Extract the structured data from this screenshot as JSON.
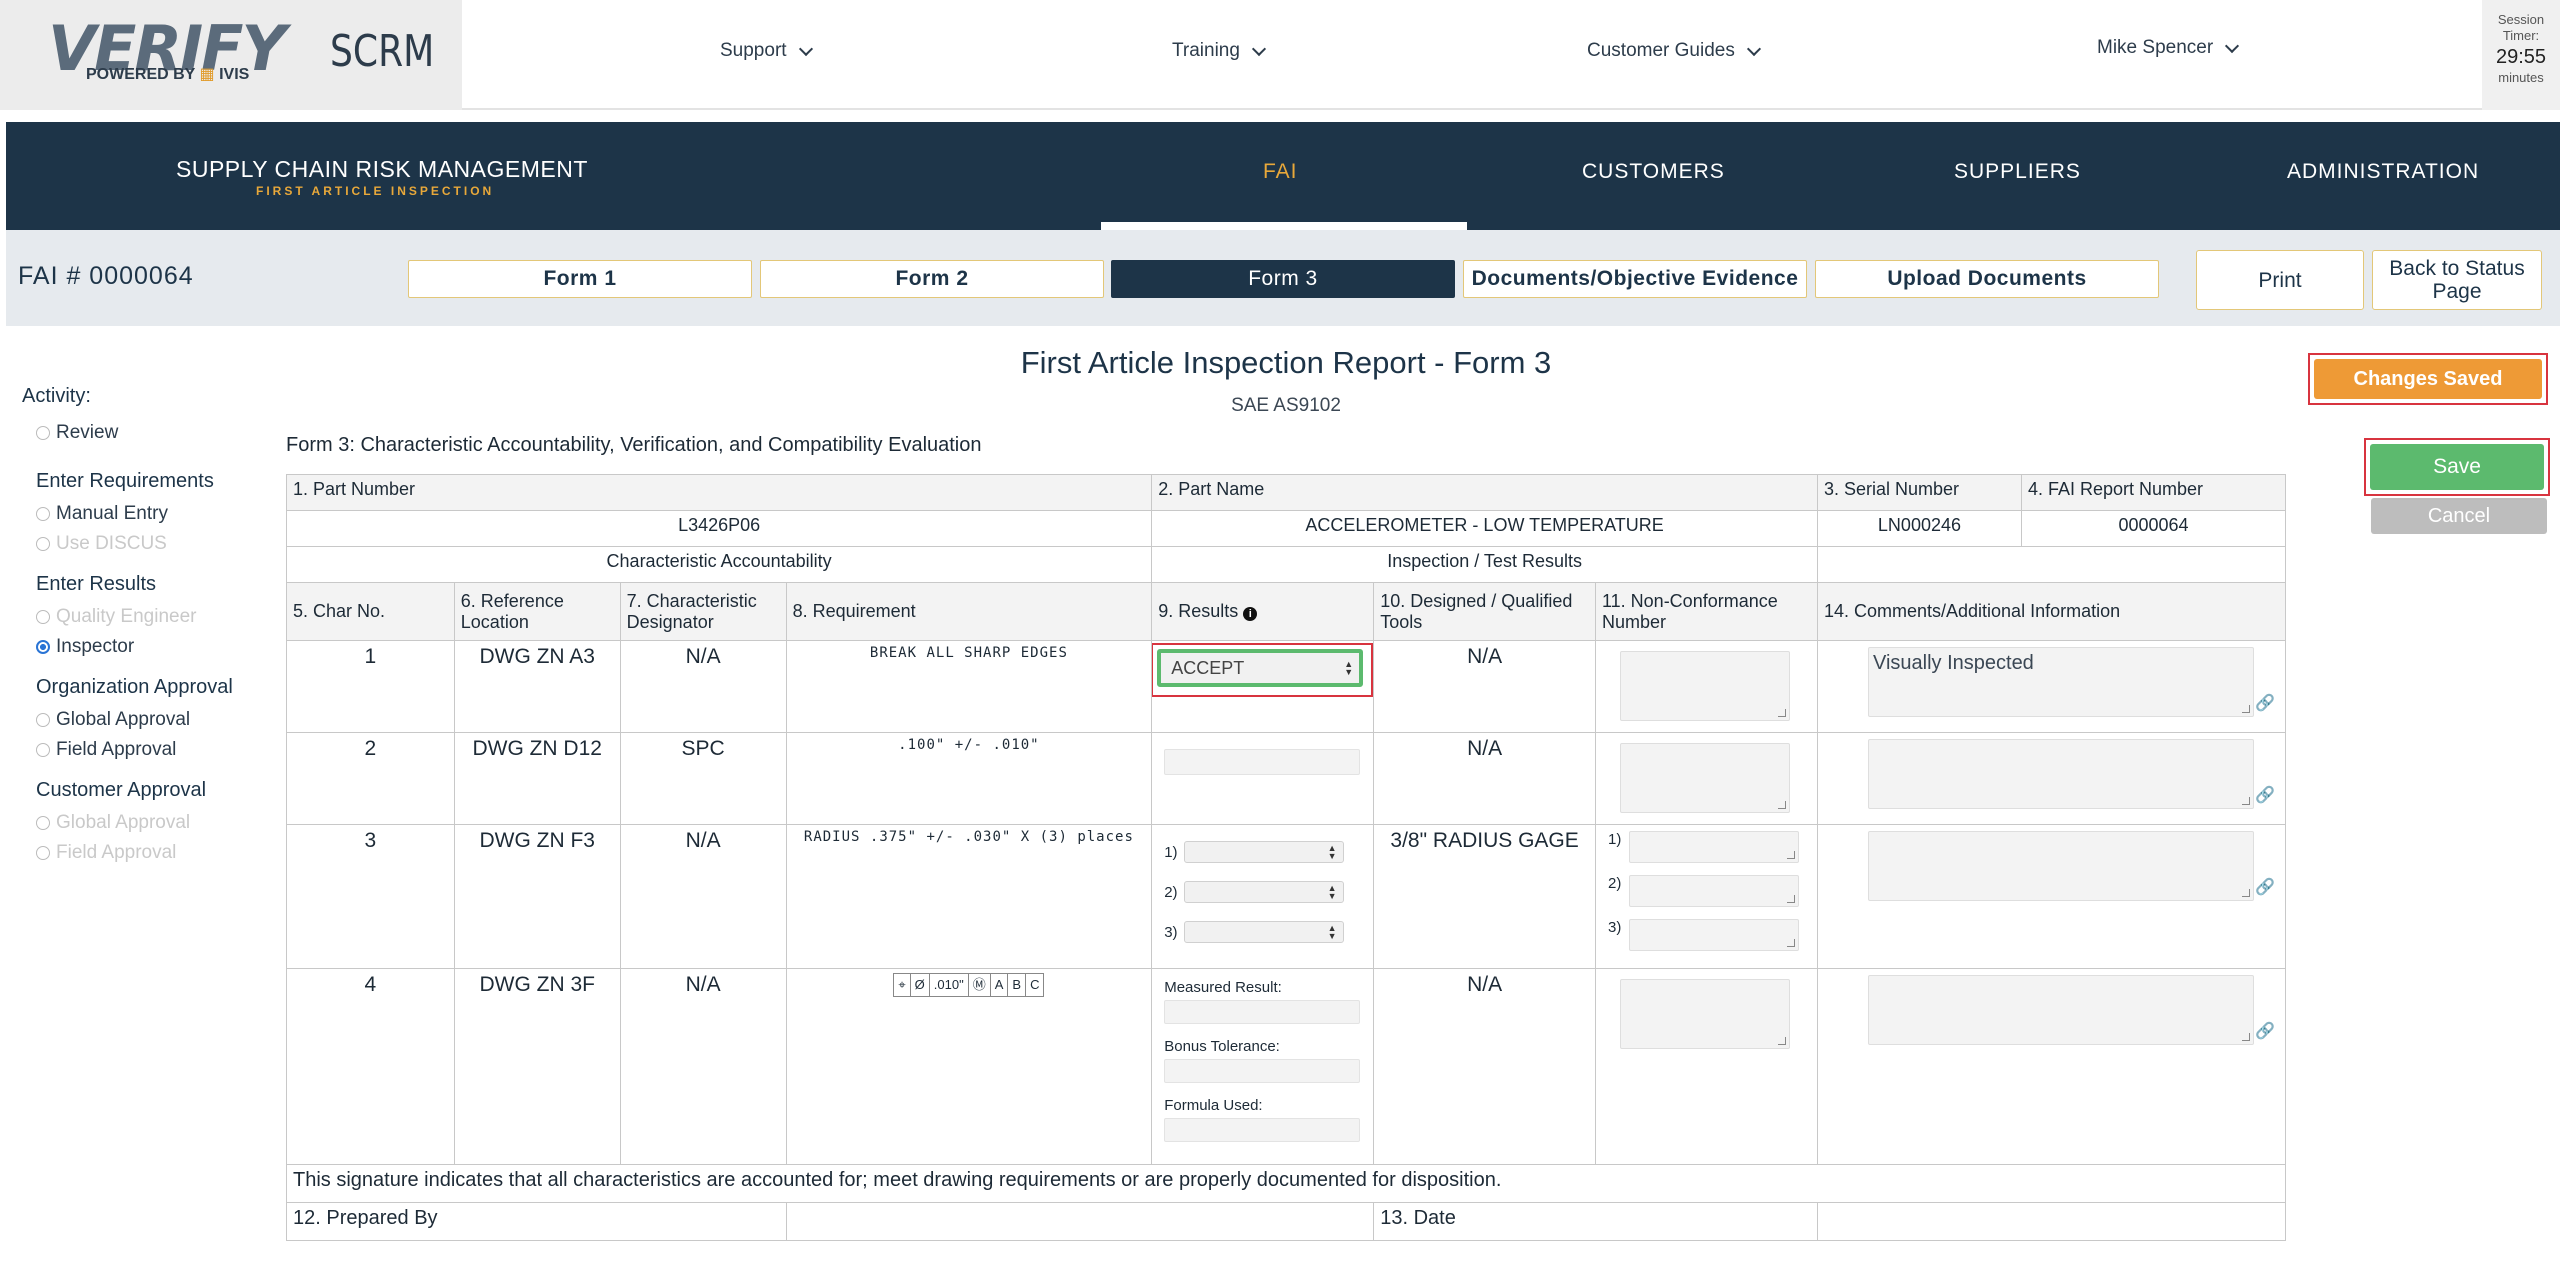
{
  "header": {
    "logo_text": "VERIFY",
    "logo_powered_by": "POWERED BY",
    "logo_brand": "IVIS",
    "app_short": "SCRM",
    "nav": [
      {
        "label": "Support"
      },
      {
        "label": "Training"
      },
      {
        "label": "Customer Guides"
      }
    ],
    "user": "Mike Spencer",
    "timer": {
      "label1": "Session",
      "label2": "Timer:",
      "value": "29:55",
      "unit": "minutes"
    }
  },
  "mainnav": {
    "brand_title": "SUPPLY CHAIN RISK MANAGEMENT",
    "brand_subtitle": "FIRST ARTICLE INSPECTION",
    "tabs": [
      "FAI",
      "CUSTOMERS",
      "SUPPLIERS",
      "ADMINISTRATION"
    ],
    "active_tab": "FAI"
  },
  "subbar": {
    "fai_number": "FAI # 0000064",
    "form_tabs": [
      "Form 1",
      "Form 2",
      "Form 3",
      "Documents/Objective Evidence",
      "Upload Documents"
    ],
    "active_form": "Form 3",
    "print_label": "Print",
    "back_label": "Back to Status Page"
  },
  "sidebar": {
    "activity_label": "Activity:",
    "review_label": "Review",
    "groups": [
      {
        "title": "Enter Requirements",
        "items": [
          {
            "label": "Manual Entry",
            "disabled": false
          },
          {
            "label": "Use DISCUS",
            "disabled": true
          }
        ]
      },
      {
        "title": "Enter Results",
        "items": [
          {
            "label": "Quality Engineer",
            "disabled": true
          },
          {
            "label": "Inspector",
            "disabled": false,
            "selected": true
          }
        ]
      },
      {
        "title": "Organization Approval",
        "items": [
          {
            "label": "Global Approval",
            "disabled": false
          },
          {
            "label": "Field Approval",
            "disabled": false
          }
        ]
      },
      {
        "title": "Customer Approval",
        "items": [
          {
            "label": "Global Approval",
            "disabled": true
          },
          {
            "label": "Field Approval",
            "disabled": true
          }
        ]
      }
    ]
  },
  "report": {
    "title": "First Article Inspection Report - Form 3",
    "subtitle": "SAE AS9102",
    "caption": "Form 3: Characteristic Accountability, Verification, and Compatibility Evaluation"
  },
  "actions": {
    "changes_saved": "Changes Saved",
    "save": "Save",
    "cancel": "Cancel"
  },
  "table": {
    "h_part_number": "1. Part Number",
    "h_part_name": "2. Part Name",
    "h_serial": "3. Serial Number",
    "h_fai_report": "4. FAI Report Number",
    "part_number": "L3426P06",
    "part_name": "ACCELEROMETER - LOW TEMPERATURE",
    "serial": "LN000246",
    "fai_report": "0000064",
    "sec_char_acc": "Characteristic Accountability",
    "sec_insp": "Inspection / Test Results",
    "h_char_no": "5. Char No.",
    "h_ref_loc": "6. Reference Location",
    "h_char_des": "7. Characteristic Designator",
    "h_req": "8. Requirement",
    "h_results": "9. Results",
    "h_tools": "10. Designed / Qualified Tools",
    "h_ncn": "11. Non-Conformance Number",
    "h_comments": "14. Comments/Additional Information",
    "rows": [
      {
        "no": "1",
        "ref": "DWG ZN A3",
        "des": "N/A",
        "req": "BREAK ALL SHARP EDGES",
        "result": "ACCEPT",
        "tools": "N/A",
        "comment": "Visually Inspected"
      },
      {
        "no": "2",
        "ref": "DWG ZN D12",
        "des": "SPC",
        "req": ".100\" +/- .010\"",
        "result": "",
        "tools": "N/A",
        "comment": ""
      },
      {
        "no": "3",
        "ref": "DWG ZN F3",
        "des": "N/A",
        "req": "RADIUS .375\" +/- .030\" X (3) places",
        "result": "",
        "tools": "3/8\" RADIUS GAGE",
        "comment": "",
        "sub_labels": [
          "1)",
          "2)",
          "3)"
        ]
      },
      {
        "no": "4",
        "ref": "DWG ZN 3F",
        "des": "N/A",
        "req_gdt": [
          "⌖",
          "Ø",
          ".010\"",
          "Ⓜ",
          "A",
          "B",
          "C"
        ],
        "tools": "N/A",
        "comment": "",
        "measured_label": "Measured Result:",
        "bonus_label": "Bonus Tolerance:",
        "formula_label": "Formula Used:"
      }
    ],
    "signature_text": "This signature indicates that all characteristics are accounted for; meet drawing requirements or are properly documented for disposition.",
    "prepared_by": "12. Prepared By",
    "date": "13. Date"
  }
}
